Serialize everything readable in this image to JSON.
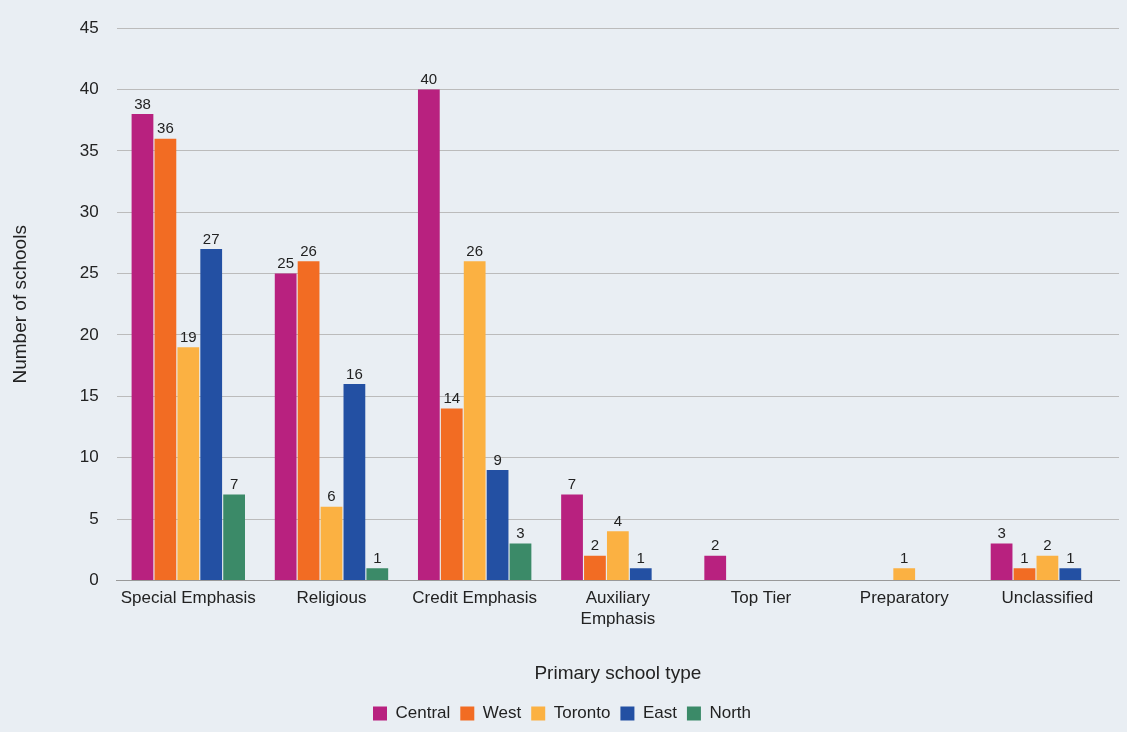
{
  "chart_data": {
    "type": "bar",
    "xlabel": "Primary school type",
    "ylabel": "Number of schools",
    "categories": [
      "Special Emphasis",
      "Religious",
      "Credit Emphasis",
      "Auxiliary Emphasis",
      "Top Tier",
      "Preparatory",
      "Unclassified"
    ],
    "series": [
      {
        "name": "Central",
        "color": "#b8217f",
        "values": [
          38,
          25,
          40,
          7,
          2,
          null,
          3
        ]
      },
      {
        "name": "West",
        "color": "#f26c23",
        "values": [
          36,
          26,
          14,
          2,
          null,
          null,
          1
        ]
      },
      {
        "name": "Toronto",
        "color": "#fbb142",
        "values": [
          19,
          6,
          26,
          4,
          null,
          1,
          2
        ]
      },
      {
        "name": "East",
        "color": "#2350a3",
        "values": [
          27,
          16,
          9,
          1,
          null,
          null,
          1
        ]
      },
      {
        "name": "North",
        "color": "#3b8a68",
        "values": [
          7,
          1,
          3,
          null,
          null,
          null,
          null
        ]
      }
    ],
    "ylim": [
      0,
      45
    ],
    "yticks": [
      0,
      5,
      10,
      15,
      20,
      25,
      30,
      35,
      40,
      45
    ],
    "grid": "y",
    "legend": "bottom",
    "data_labels": true
  }
}
